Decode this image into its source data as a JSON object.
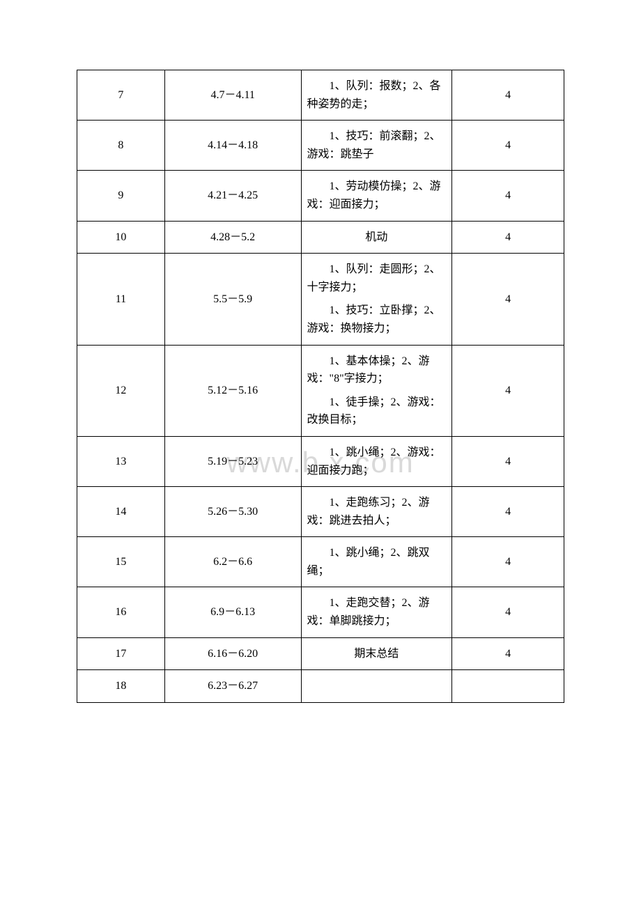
{
  "watermark_text": "www.b    x.com",
  "rows": [
    {
      "num": "7",
      "dates": "4.7－4.11",
      "content": [
        {
          "text": "1、队列：报数；2、各种姿势的走；"
        }
      ],
      "hours": "4"
    },
    {
      "num": "8",
      "dates": "4.14－4.18",
      "content": [
        {
          "text": "1、技巧：前滚翻；2、游戏：跳垫子"
        }
      ],
      "hours": "4"
    },
    {
      "num": "9",
      "dates": "4.21－4.25",
      "content": [
        {
          "text": "1、劳动模仿操；2、游戏：迎面接力；"
        }
      ],
      "hours": "4"
    },
    {
      "num": "10",
      "dates": "4.28－5.2",
      "content": [
        {
          "text": "机动",
          "center": true
        }
      ],
      "hours": "4"
    },
    {
      "num": "11",
      "dates": "5.5－5.9",
      "content": [
        {
          "text": "1、队列：走圆形；2、十字接力；"
        },
        {
          "text": "1、技巧：立卧撑；2、游戏：换物接力；"
        }
      ],
      "hours": "4"
    },
    {
      "num": "12",
      "dates": "5.12－5.16",
      "content": [
        {
          "text": "1、基本体操；2、游戏：\"8\"字接力；"
        },
        {
          "text": "1、徒手操；2、游戏：改换目标；"
        }
      ],
      "hours": "4"
    },
    {
      "num": "13",
      "dates": "5.19－5.23",
      "content": [
        {
          "text": "1、跳小绳；2、游戏：迎面接力跑；"
        }
      ],
      "hours": "4"
    },
    {
      "num": "14",
      "dates": "5.26－5.30",
      "content": [
        {
          "text": "1、走跑练习；2、游戏：跳进去拍人；"
        }
      ],
      "hours": "4"
    },
    {
      "num": "15",
      "dates": "6.2－6.6",
      "content": [
        {
          "text": "1、跳小绳；2、跳双绳；"
        }
      ],
      "hours": "4"
    },
    {
      "num": "16",
      "dates": "6.9－6.13",
      "content": [
        {
          "text": "1、走跑交替；2、游戏：单脚跳接力；"
        }
      ],
      "hours": "4"
    },
    {
      "num": "17",
      "dates": "6.16－6.20",
      "content": [
        {
          "text": "期末总结",
          "center": true
        }
      ],
      "hours": "4"
    },
    {
      "num": "18",
      "dates": "6.23－6.27",
      "content": [],
      "hours": ""
    }
  ],
  "styles": {
    "font_size_pt": 12,
    "border_color": "#000000",
    "background_color": "#ffffff",
    "text_color": "#000000",
    "watermark_color": "#d9d9d9",
    "col_widths_pct": [
      18,
      28,
      31,
      23
    ]
  }
}
